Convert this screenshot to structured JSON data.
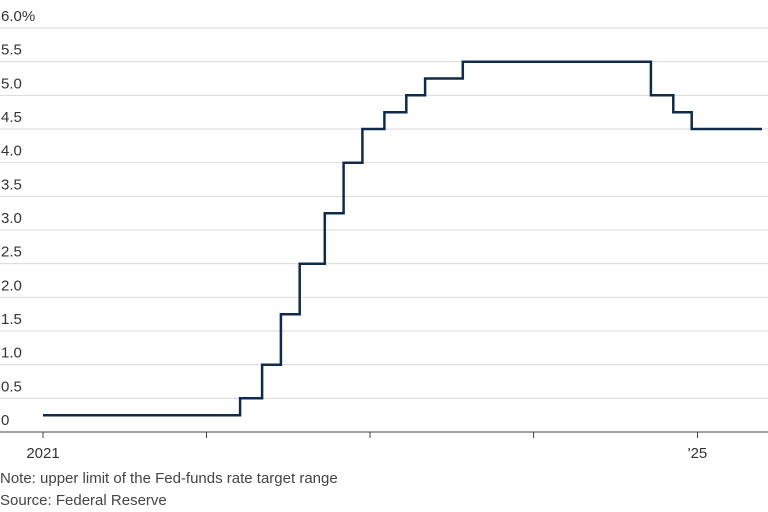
{
  "chart_data": {
    "type": "line",
    "line_style": "step",
    "line_color": "#0f2b4c",
    "ylabel": "",
    "xlabel": "",
    "ylim": [
      0,
      6.0
    ],
    "y_ticks": [
      {
        "value": 0,
        "label": "0"
      },
      {
        "value": 0.5,
        "label": "0.5"
      },
      {
        "value": 1.0,
        "label": "1.0"
      },
      {
        "value": 1.5,
        "label": "1.5"
      },
      {
        "value": 2.0,
        "label": "2.0"
      },
      {
        "value": 2.5,
        "label": "2.5"
      },
      {
        "value": 3.0,
        "label": "3.0"
      },
      {
        "value": 3.5,
        "label": "3.5"
      },
      {
        "value": 4.0,
        "label": "4.0"
      },
      {
        "value": 4.5,
        "label": "4.5"
      },
      {
        "value": 5.0,
        "label": "5.0"
      },
      {
        "value": 5.5,
        "label": "5.5"
      },
      {
        "value": 6.0,
        "label": "6.0%"
      }
    ],
    "xlim": [
      "2021-01-01",
      "2025-06-01"
    ],
    "x_ticks": [
      {
        "value": "2021-01-01",
        "label": "2021"
      },
      {
        "value": "2022-01-01",
        "label": ""
      },
      {
        "value": "2023-01-01",
        "label": ""
      },
      {
        "value": "2024-01-01",
        "label": ""
      },
      {
        "value": "2025-01-01",
        "label": "'25"
      }
    ],
    "grid": true,
    "series": [
      {
        "points": [
          {
            "x": "2021-01-01",
            "y": 0.25
          },
          {
            "x": "2022-03-17",
            "y": 0.5
          },
          {
            "x": "2022-05-05",
            "y": 1.0
          },
          {
            "x": "2022-06-16",
            "y": 1.75
          },
          {
            "x": "2022-07-28",
            "y": 2.5
          },
          {
            "x": "2022-09-22",
            "y": 3.25
          },
          {
            "x": "2022-11-03",
            "y": 4.0
          },
          {
            "x": "2022-12-15",
            "y": 4.5
          },
          {
            "x": "2023-02-02",
            "y": 4.75
          },
          {
            "x": "2023-03-23",
            "y": 5.0
          },
          {
            "x": "2023-05-04",
            "y": 5.25
          },
          {
            "x": "2023-07-27",
            "y": 5.5
          },
          {
            "x": "2024-09-19",
            "y": 5.0
          },
          {
            "x": "2024-11-08",
            "y": 4.75
          },
          {
            "x": "2024-12-19",
            "y": 4.5
          },
          {
            "x": "2025-05-25",
            "y": 4.5
          }
        ]
      }
    ]
  },
  "footer": {
    "note": "Note: upper limit of the Fed-funds rate target range",
    "source": "Source: Federal Reserve"
  }
}
